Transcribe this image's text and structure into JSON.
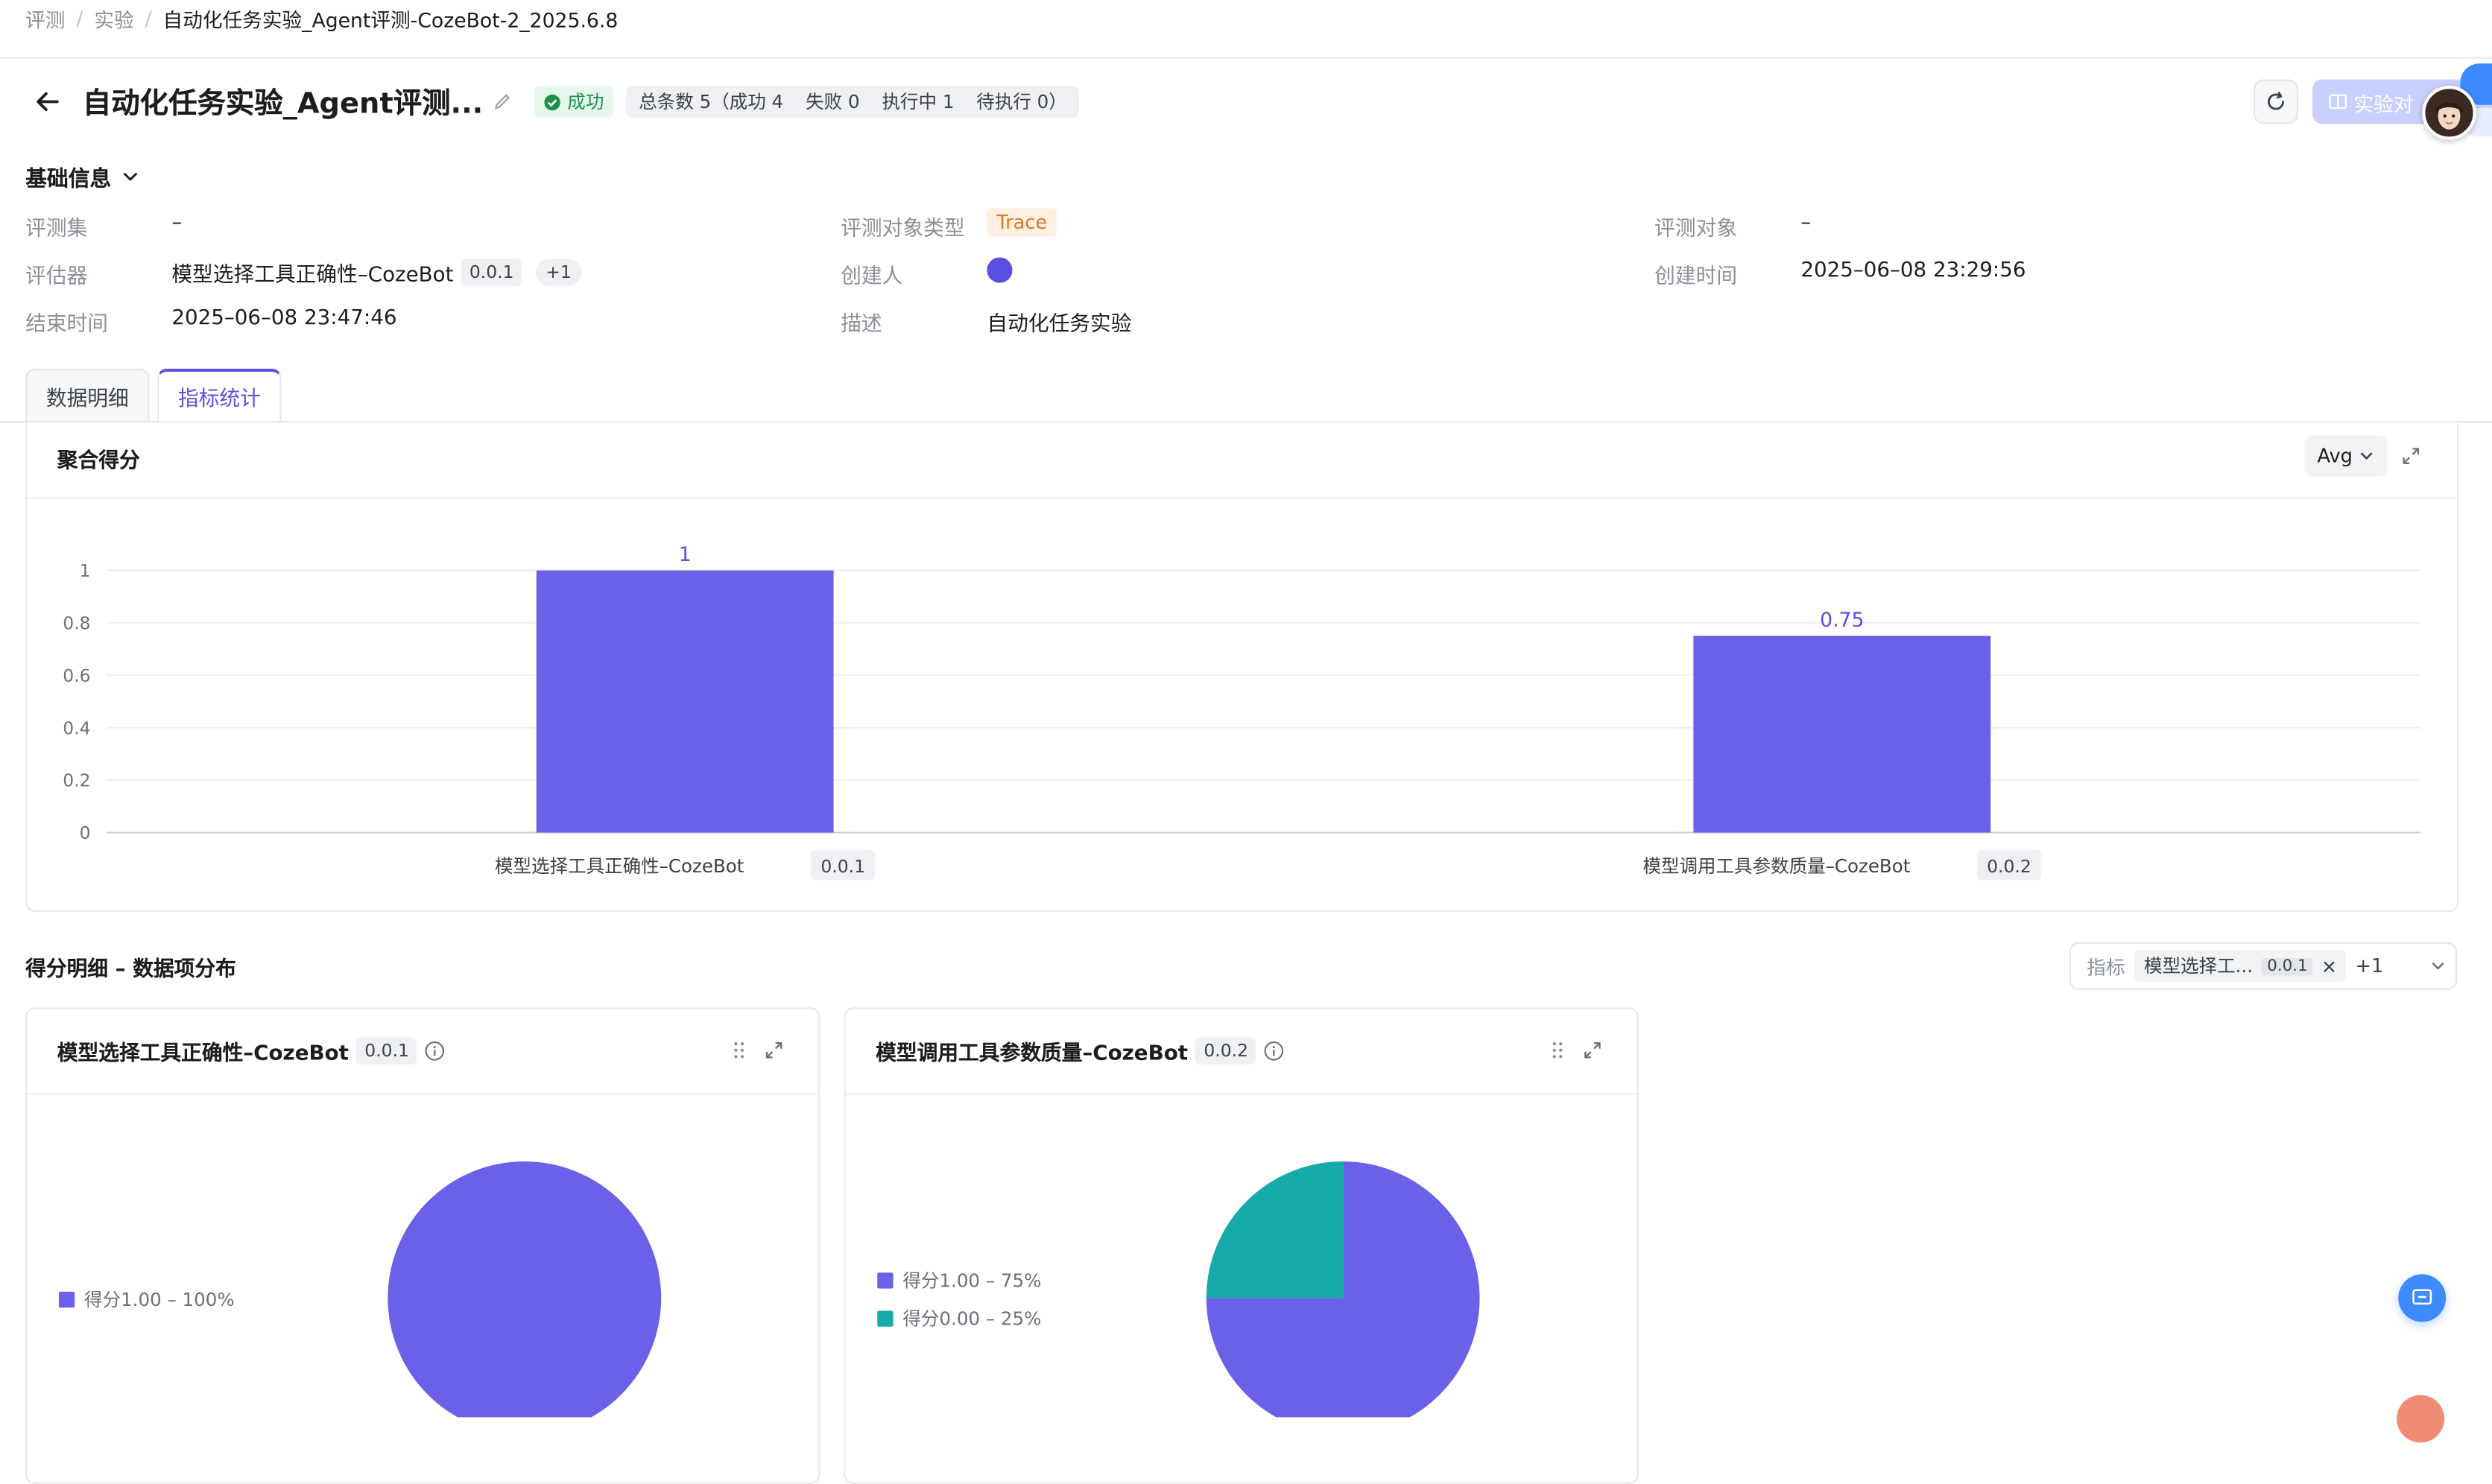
{
  "breadcrumb": {
    "items": [
      "评测",
      "实验"
    ],
    "current": "自动化任务实验_Agent评测-CozeBot-2_2025.6.8"
  },
  "header": {
    "title": "自动化任务实验_Agent评测...",
    "status": "成功",
    "counts": {
      "total": "总条数 5（成功 4",
      "failed": "失败 0",
      "running": "执行中 1",
      "pending": "待执行 0）"
    },
    "compare_button": "实验对"
  },
  "basic_info": {
    "section_title": "基础信息",
    "eval_set": {
      "label": "评测集",
      "value": "–"
    },
    "evaluator": {
      "label": "评估器",
      "value": "模型选择工具正确性–CozeBot",
      "version": "0.0.1",
      "more": "+1"
    },
    "end_time": {
      "label": "结束时间",
      "value": "2025–06–08 23:47:46"
    },
    "target_type": {
      "label": "评测对象类型",
      "value": "Trace"
    },
    "creator": {
      "label": "创建人"
    },
    "description": {
      "label": "描述",
      "value": "自动化任务实验"
    },
    "target": {
      "label": "评测对象",
      "value": "–"
    },
    "created_time": {
      "label": "创建时间",
      "value": "2025–06–08 23:29:56"
    }
  },
  "tabs": [
    {
      "label": "数据明细",
      "active": false
    },
    {
      "label": "指标统计",
      "active": true
    }
  ],
  "aggregate": {
    "title": "聚合得分",
    "agg_select": "Avg"
  },
  "chart_data": [
    {
      "type": "bar",
      "title": "聚合得分",
      "categories": [
        "模型选择工具正确性–CozeBot",
        "模型调用工具参数质量–CozeBot"
      ],
      "category_versions": [
        "0.0.1",
        "0.0.2"
      ],
      "values": [
        1,
        0.75
      ],
      "data_labels": [
        "1",
        "0.75"
      ],
      "yticks": [
        "0",
        "0.2",
        "0.4",
        "0.6",
        "0.8",
        "1"
      ],
      "ylim": [
        0,
        1
      ],
      "grid": true,
      "color": "#6b61e8"
    },
    {
      "type": "pie",
      "title": "模型选择工具正确性–CozeBot",
      "version": "0.0.1",
      "slices": [
        {
          "label": "得分1.00 – 100%",
          "value": 100,
          "color": "#6b61e8"
        }
      ],
      "legend": "left"
    },
    {
      "type": "pie",
      "title": "模型调用工具参数质量–CozeBot",
      "version": "0.0.2",
      "slices": [
        {
          "label": "得分1.00 – 75%",
          "value": 75,
          "color": "#6b61e8"
        },
        {
          "label": "得分0.00 – 25%",
          "value": 25,
          "color": "#16aaa8"
        }
      ],
      "legend": "left"
    }
  ],
  "distribution": {
    "title": "得分明细 – 数据项分布",
    "filter": {
      "label": "指标",
      "chip": "模型选择工...",
      "chip_version": "0.0.1",
      "more": "+1"
    }
  },
  "colors": {
    "accent": "#5b4fe0",
    "bar": "#6b61e8",
    "teal": "#16aaa8",
    "success_bg": "#e6f7ec",
    "success_text": "#1a8f4a",
    "trace_bg": "#fdf0e2",
    "trace_text": "#d9772a"
  },
  "icons": [
    "back-arrow-icon",
    "edit-pencil-icon",
    "check-circle-icon",
    "refresh-icon",
    "compare-icon",
    "chevron-down-icon",
    "expand-icon",
    "drag-handle-icon",
    "info-icon",
    "close-icon",
    "chat-icon"
  ]
}
